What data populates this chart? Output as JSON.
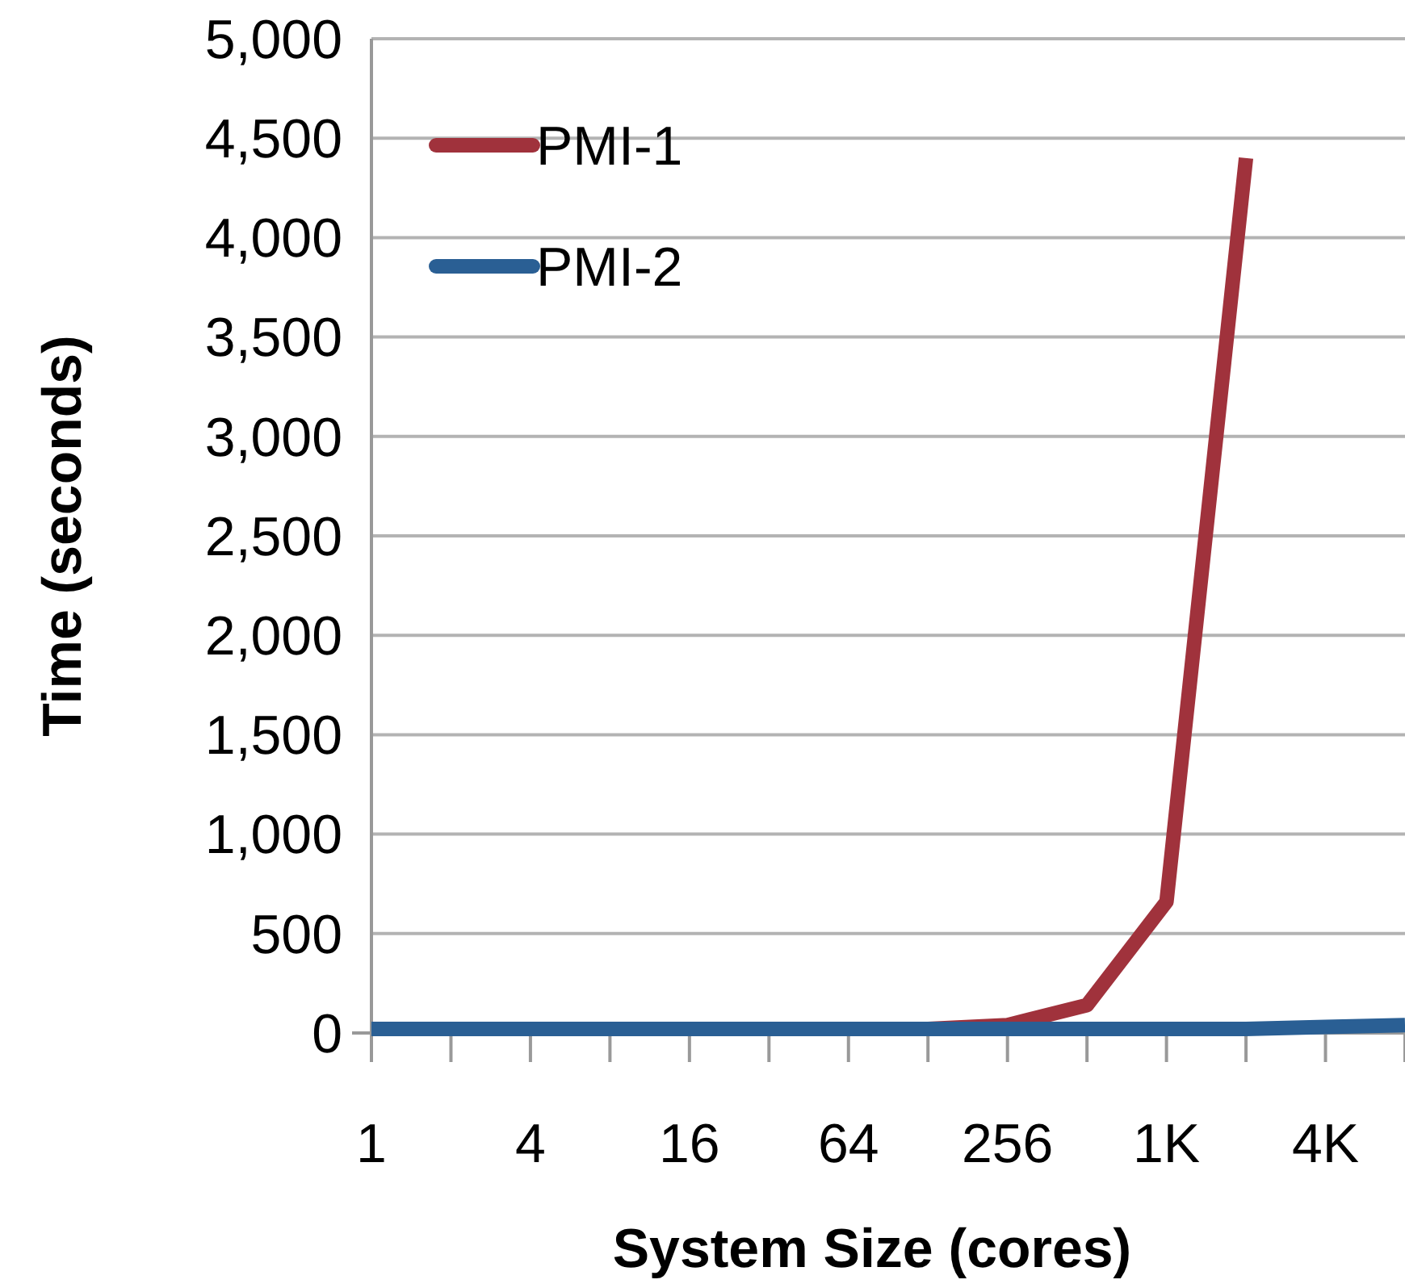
{
  "chart_data": {
    "type": "line",
    "xlabel": "System Size (cores)",
    "ylabel": "Time (seconds)",
    "categories": [
      "1",
      null,
      "4",
      null,
      "16",
      null,
      "64",
      null,
      "256",
      null,
      "1K",
      null,
      "4K",
      null
    ],
    "series": [
      {
        "name": "PMI-1",
        "color": "#a0323c",
        "values": [
          null,
          null,
          null,
          null,
          null,
          null,
          null,
          20,
          40,
          140,
          660,
          4400,
          null,
          null
        ]
      },
      {
        "name": "PMI-2",
        "color": "#2a5f94",
        "values": [
          20,
          20,
          20,
          20,
          20,
          20,
          20,
          20,
          20,
          20,
          20,
          20,
          30,
          40
        ]
      }
    ],
    "ylim": [
      0,
      5000
    ],
    "yticks": [
      {
        "value": 0,
        "label": "0"
      },
      {
        "value": 500,
        "label": "500"
      },
      {
        "value": 1000,
        "label": "1,000"
      },
      {
        "value": 1500,
        "label": "1,500"
      },
      {
        "value": 2000,
        "label": "2,000"
      },
      {
        "value": 2500,
        "label": "2,500"
      },
      {
        "value": 3000,
        "label": "3,000"
      },
      {
        "value": 3500,
        "label": "3,500"
      },
      {
        "value": 4000,
        "label": "4,000"
      },
      {
        "value": 4500,
        "label": "4,500"
      },
      {
        "value": 5000,
        "label": "5,000"
      }
    ],
    "grid": "y",
    "legend": "top left",
    "marker": "none",
    "line_style": "solid"
  }
}
